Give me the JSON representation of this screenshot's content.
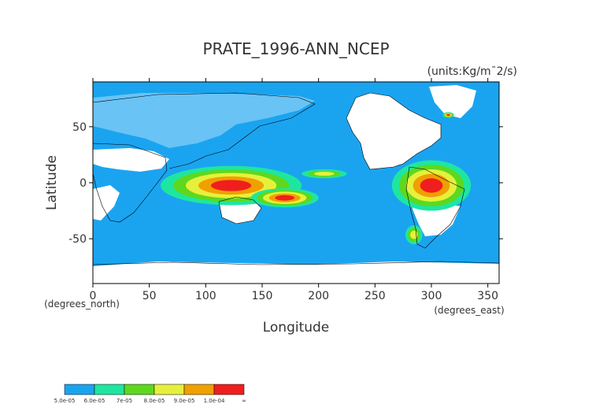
{
  "chart_data": {
    "type": "heatmap",
    "title": "PRATE_1996-ANN_NCEP",
    "units": "(units:Kg/m¯2/s)",
    "xlabel": "Longitude",
    "ylabel": "Latitude",
    "x_unit_label": "(degrees_east)",
    "y_unit_label": "(degrees_north)",
    "xlim": [
      0,
      360
    ],
    "ylim": [
      -90,
      90
    ],
    "x_ticks": [
      0,
      50,
      100,
      150,
      200,
      250,
      300,
      350
    ],
    "y_ticks": [
      50,
      0,
      -50
    ],
    "x_tick_labels": [
      "0",
      "50",
      "100",
      "150",
      "200",
      "250",
      "300",
      "350"
    ],
    "y_tick_labels": [
      "50",
      "0",
      "-50"
    ],
    "colorbar": {
      "labels": [
        "5.0e-05",
        "6.0e-05",
        "7e-05",
        "8.0e-05",
        "9.0e-05",
        "1.0e-04",
        "∞"
      ],
      "colors": [
        "#1aa4f0",
        "#1ee6a0",
        "#5ed81e",
        "#e6f03c",
        "#f0a000",
        "#f01e1e"
      ]
    },
    "precip_regions": [
      {
        "lon": [
          60,
          185
        ],
        "lat": [
          15,
          -20
        ],
        "level": "high"
      },
      {
        "lon": [
          185,
          225
        ],
        "lat": [
          12,
          4
        ],
        "level": "moderate"
      },
      {
        "lon": [
          140,
          200
        ],
        "lat": [
          -5,
          -22
        ],
        "level": "high"
      },
      {
        "lon": [
          265,
          335
        ],
        "lat": [
          20,
          -25
        ],
        "level": "high"
      },
      {
        "lon": [
          277,
          292
        ],
        "lat": [
          -38,
          -55
        ],
        "level": "moderate"
      },
      {
        "lon": [
          310,
          320
        ],
        "lat": [
          63,
          58
        ],
        "level": "high"
      }
    ]
  }
}
